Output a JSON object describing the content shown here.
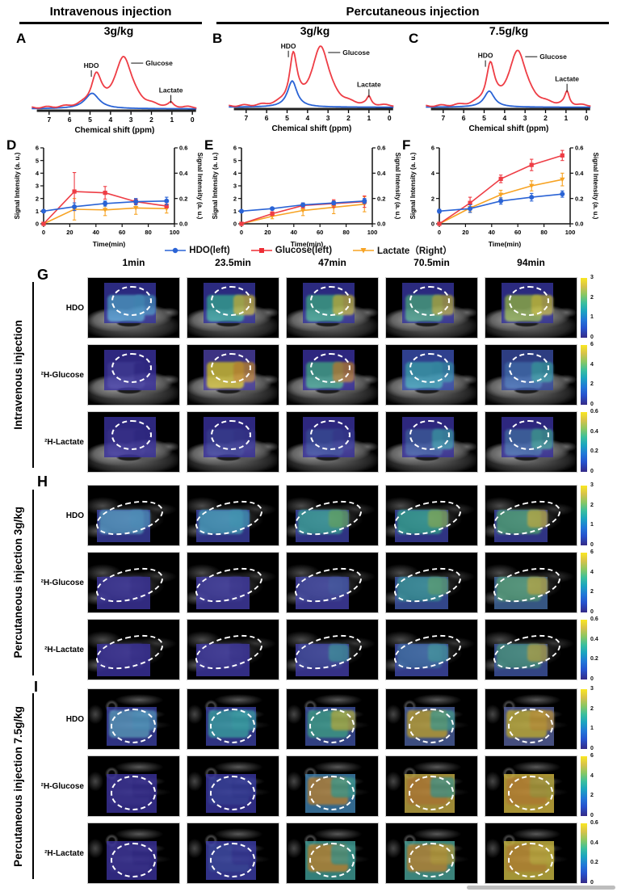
{
  "header": {
    "intravenous": "Intravenous injection",
    "percutaneous": "Percutaneous injection"
  },
  "peak_labels": [
    "HDO",
    "Glucose",
    "Lactate"
  ],
  "legend": [
    {
      "label": "HDO(left)",
      "marker": "circle",
      "color": "#2a63d5"
    },
    {
      "label": "Glucose(left)",
      "marker": "square",
      "color": "#ee2d35"
    },
    {
      "label": "Lactate（Right）",
      "marker": "triangle-down",
      "color": "#f7a323"
    }
  ],
  "chart_data": [
    {
      "id": "A",
      "type": "line",
      "kind": "nmr_spectrum",
      "dose": "3g/kg",
      "xlabel": "Chemical shift (ppm)",
      "xticks": [
        7,
        6,
        5,
        4,
        3,
        2,
        1,
        0
      ],
      "peaks_ppm": {
        "HDO": 4.7,
        "Glucose": 3.35,
        "Lactate": 1.05
      },
      "red_heights": {
        "HDO": 0.5,
        "Glucose": 0.85,
        "Lactate": 0.06
      },
      "red_widths": {
        "HDO": 0.3,
        "Glucose": 0.5,
        "Lactate": 0.12
      },
      "blue_peak": {
        "ppm": 4.9,
        "height": 0.26,
        "width": 0.42
      }
    },
    {
      "id": "B",
      "type": "line",
      "kind": "nmr_spectrum",
      "dose": "3g/kg",
      "xlabel": "Chemical shift (ppm)",
      "xticks": [
        7,
        6,
        5,
        4,
        3,
        2,
        1,
        0
      ],
      "peaks_ppm": {
        "HDO": 4.7,
        "Glucose": 3.35,
        "Lactate": 1.0
      },
      "red_heights": {
        "HDO": 0.8,
        "Glucose": 1.0,
        "Lactate": 0.13
      },
      "red_widths": {
        "HDO": 0.22,
        "Glucose": 0.5,
        "Lactate": 0.12
      },
      "blue_peak": {
        "ppm": 4.75,
        "height": 0.44,
        "width": 0.28
      }
    },
    {
      "id": "C",
      "type": "line",
      "kind": "nmr_spectrum",
      "dose": "7.5g/kg",
      "xlabel": "Chemical shift (ppm)",
      "xticks": [
        7,
        6,
        5,
        4,
        3,
        2,
        1,
        0
      ],
      "peaks_ppm": {
        "HDO": 4.7,
        "Glucose": 3.35,
        "Lactate": 0.95
      },
      "red_heights": {
        "HDO": 0.64,
        "Glucose": 0.93,
        "Lactate": 0.22
      },
      "red_widths": {
        "HDO": 0.24,
        "Glucose": 0.5,
        "Lactate": 0.13
      },
      "blue_peak": {
        "ppm": 4.75,
        "height": 0.27,
        "width": 0.3
      }
    },
    {
      "id": "D",
      "type": "line",
      "kind": "timecourse",
      "xlabel": "Time(min)",
      "ylabel_left": "Signal Intensity (a. u.)",
      "ylabel_right": "Signal Intensity (a. u.)",
      "x": [
        0,
        23.5,
        47,
        70.5,
        94
      ],
      "xticks": [
        0,
        20,
        40,
        60,
        80,
        100
      ],
      "ylim_left": [
        0,
        6
      ],
      "ylim_right": [
        0,
        0.6
      ],
      "yticks_left": [
        0,
        1,
        2,
        3,
        4,
        5,
        6
      ],
      "yticks_right": [
        "0.0",
        "0.2",
        "0.4",
        "0.6"
      ],
      "series": [
        {
          "name": "HDO(left)",
          "axis": "left",
          "values": [
            1.0,
            1.35,
            1.6,
            1.75,
            1.8
          ],
          "errors": [
            0.1,
            0.3,
            0.2,
            0.25,
            0.3
          ]
        },
        {
          "name": "Glucose(left)",
          "axis": "left",
          "values": [
            0,
            2.55,
            2.45,
            1.75,
            1.4
          ],
          "errors": [
            0.05,
            1.5,
            0.5,
            0.2,
            0.15
          ]
        },
        {
          "name": "Lactate（Right）",
          "axis": "right",
          "values": [
            0,
            0.115,
            0.11,
            0.125,
            0.12
          ],
          "errors": [
            0.005,
            0.085,
            0.045,
            0.05,
            0.035
          ]
        }
      ]
    },
    {
      "id": "E",
      "type": "line",
      "kind": "timecourse",
      "xlabel": "Time(min)",
      "ylabel_left": "Signal Intensity (a. u.)",
      "ylabel_right": "Signal Intensity (a. u.)",
      "x": [
        0,
        23.5,
        47,
        70.5,
        94
      ],
      "xticks": [
        0,
        20,
        40,
        60,
        80,
        100
      ],
      "ylim_left": [
        0,
        6
      ],
      "ylim_right": [
        0,
        0.6
      ],
      "yticks_left": [
        0,
        1,
        2,
        3,
        4,
        5,
        6
      ],
      "yticks_right": [
        "0.0",
        "0.2",
        "0.4",
        "0.6"
      ],
      "series": [
        {
          "name": "HDO(left)",
          "axis": "left",
          "values": [
            1.0,
            1.2,
            1.5,
            1.65,
            1.8
          ],
          "errors": [
            0.05,
            0.1,
            0.15,
            0.15,
            0.2
          ]
        },
        {
          "name": "Glucose(left)",
          "axis": "left",
          "values": [
            0,
            0.8,
            1.45,
            1.6,
            1.75
          ],
          "errors": [
            0.04,
            0.15,
            0.2,
            0.3,
            0.45
          ]
        },
        {
          "name": "Lactate（Right）",
          "axis": "right",
          "values": [
            0,
            0.06,
            0.105,
            0.13,
            0.155
          ],
          "errors": [
            0.004,
            0.02,
            0.04,
            0.05,
            0.06
          ]
        }
      ]
    },
    {
      "id": "F",
      "type": "line",
      "kind": "timecourse",
      "xlabel": "Time(min)",
      "ylabel_left": "Signal Intensity (a. u.)",
      "ylabel_right": "Signal Intensity (a. u.)",
      "x": [
        0,
        23.5,
        47,
        70.5,
        94
      ],
      "xticks": [
        0,
        20,
        40,
        60,
        80,
        100
      ],
      "ylim_left": [
        0,
        6
      ],
      "ylim_right": [
        0,
        0.6
      ],
      "yticks_left": [
        0,
        2,
        4,
        6
      ],
      "yticks_right": [
        "0.0",
        "0.2",
        "0.4",
        "0.6"
      ],
      "series": [
        {
          "name": "HDO(left)",
          "axis": "left",
          "values": [
            1.0,
            1.2,
            1.8,
            2.1,
            2.35
          ],
          "errors": [
            0.15,
            0.3,
            0.25,
            0.3,
            0.25
          ]
        },
        {
          "name": "Glucose(left)",
          "axis": "left",
          "values": [
            0,
            1.65,
            3.55,
            4.65,
            5.4
          ],
          "errors": [
            0.05,
            0.45,
            0.3,
            0.45,
            0.4
          ]
        },
        {
          "name": "Lactate（Right）",
          "axis": "right",
          "values": [
            0,
            0.125,
            0.23,
            0.3,
            0.35
          ],
          "errors": [
            0.005,
            0.03,
            0.035,
            0.04,
            0.05
          ]
        }
      ]
    }
  ],
  "grid": {
    "time_labels": [
      "1min",
      "23.5min",
      "47min",
      "70.5min",
      "94min"
    ],
    "sections": [
      {
        "letter": "G",
        "title": "Intravenous injection",
        "rows": [
          {
            "label": "HDO",
            "colorbar": [
              "3",
              "2",
              "1",
              "0"
            ],
            "cells": [
              [
                "#35349b",
                "#57a8de",
                "#4f9fd6"
              ],
              [
                "#35349b",
                "#3eb3ab",
                "#dfcc4a"
              ],
              [
                "#35349b",
                "#47b49b",
                "#d8c94a"
              ],
              [
                "#35349b",
                "#53b194",
                "#c9bd4e"
              ],
              [
                "#35349b",
                "#9fc05a",
                "#dccf4a"
              ]
            ]
          },
          {
            "label": "²H-Glucose",
            "colorbar": [
              "6",
              "4",
              "2",
              "0"
            ],
            "cells": [
              [
                "#39309c",
                "#4a44ae",
                "#39309c"
              ],
              [
                "#4a3f9f",
                "#e2d23d",
                "#d89a3c"
              ],
              [
                "#39309c",
                "#4cb39b",
                "#d0903f"
              ],
              [
                "#3a4fae",
                "#46aec6",
                "#3fa0c0"
              ],
              [
                "#374b9e",
                "#4a79c4",
                "#43b0b8"
              ]
            ]
          },
          {
            "label": "²H-Lactate",
            "colorbar": [
              "0.6",
              "0.4",
              "0.2",
              "0"
            ],
            "cells": [
              [
                "#38309a",
                "#423aa4",
                "#38309a"
              ],
              [
                "#38309a",
                "#4348a8",
                "#3f3ea2"
              ],
              [
                "#38309a",
                "#4356ae",
                "#4043a6"
              ],
              [
                "#38309a",
                "#4767b4",
                "#45aec0"
              ],
              [
                "#38309a",
                "#4b76bc",
                "#49b2a8"
              ]
            ]
          }
        ]
      },
      {
        "letter": "H",
        "title": "Percutaneous injection 3g/kg",
        "rows": [
          {
            "label": "HDO",
            "colorbar": [
              "3",
              "2",
              "1",
              "0"
            ],
            "cells": [
              [
                "#3a3f9f",
                "#5fa8d8",
                "#55a0d4"
              ],
              [
                "#3a3f9f",
                "#52aed2",
                "#47a8cc"
              ],
              [
                "#3a3f9f",
                "#44b2ae",
                "#6db870"
              ],
              [
                "#3a3f9f",
                "#3cb2a4",
                "#8fbf63"
              ],
              [
                "#3a3f9f",
                "#59b288",
                "#d3c24b"
              ]
            ]
          },
          {
            "label": "²H-Glucose",
            "colorbar": [
              "6",
              "4",
              "2",
              "0"
            ],
            "cells": [
              [
                "#3c349c",
                "#453fa6",
                "#3c349c"
              ],
              [
                "#413ba2",
                "#4c48ae",
                "#413ba2"
              ],
              [
                "#433fa6",
                "#4d55b2",
                "#4a62b4"
              ],
              [
                "#3e56a8",
                "#42a4ae",
                "#64b383"
              ],
              [
                "#42699f",
                "#63b28b",
                "#cdbd4e"
              ]
            ]
          },
          {
            "label": "²H-Lactate",
            "colorbar": [
              "0.6",
              "0.4",
              "0.2",
              "0"
            ],
            "cells": [
              [
                "#3a319b",
                "#443ca4",
                "#3a319b"
              ],
              [
                "#3e37a0",
                "#4a44ac",
                "#3e37a0"
              ],
              [
                "#413ca4",
                "#4a55b0",
                "#44a0b0"
              ],
              [
                "#3f4aa8",
                "#4a7cbc",
                "#4aa8b4"
              ],
              [
                "#3f55a0",
                "#52a392",
                "#c2b44e"
              ]
            ]
          }
        ]
      },
      {
        "letter": "I",
        "title": "Percutaneous injection 7.5g/kg",
        "rows": [
          {
            "label": "HDO",
            "colorbar": [
              "3",
              "2",
              "1",
              "0"
            ],
            "cells": [
              [
                "#3a3f9e",
                "#66aad6",
                "#58a2d2"
              ],
              [
                "#3a3f9e",
                "#45b2bc",
                "#3fafba"
              ],
              [
                "#3c4f9e",
                "#4ab2a0",
                "#c5c14a"
              ],
              [
                "#4a5f9c",
                "#d0b445",
                "#4aae9e"
              ],
              [
                "#55609a",
                "#d6c244",
                "#d1a23f"
              ]
            ]
          },
          {
            "label": "²H-Glucose",
            "colorbar": [
              "6",
              "4",
              "2",
              "0"
            ],
            "cells": [
              [
                "#3a3199",
                "#433ba2",
                "#3a3199"
              ],
              [
                "#39359e",
                "#414bae",
                "#3a41a6"
              ],
              [
                "#3f7fae",
                "#c9964a",
                "#43ae9e"
              ],
              [
                "#c0a843",
                "#c98f3f",
                "#48a89a"
              ],
              [
                "#cdb23f",
                "#d1963c",
                "#b3aa45"
              ]
            ]
          },
          {
            "label": "²H-Lactate",
            "colorbar": [
              "0.6",
              "0.4",
              "0.2",
              "0"
            ],
            "cells": [
              [
                "#3a3199",
                "#433ba2",
                "#3a3199"
              ],
              [
                "#3c3da6",
                "#4553b2",
                "#3c3da6"
              ],
              [
                "#3f9a94",
                "#cd9b44",
                "#45a89c"
              ],
              [
                "#49a096",
                "#cd9b44",
                "#c9ae45"
              ],
              [
                "#c7b642",
                "#cf9b3e",
                "#d3c148"
              ]
            ]
          }
        ]
      }
    ]
  },
  "colors": {
    "red": "#ee3d45",
    "blue": "#2a63d5",
    "orange": "#f7a323"
  }
}
